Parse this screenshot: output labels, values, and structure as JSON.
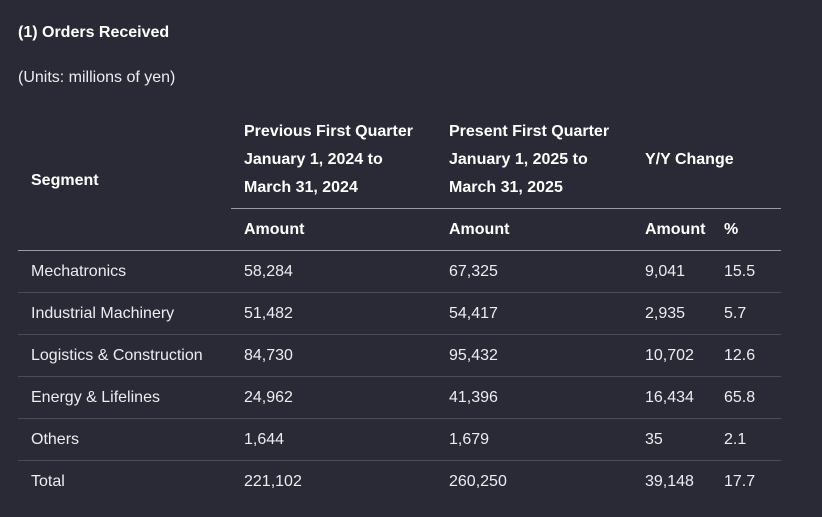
{
  "title": "(1) Orders Received",
  "units": "(Units: millions of yen)",
  "table": {
    "segment_header": "Segment",
    "previous_header": {
      "line1": "Previous First Quarter",
      "line2": "January 1, 2024 to",
      "line3": "March 31, 2024"
    },
    "present_header": {
      "line1": "Present First Quarter",
      "line2": "January 1, 2025 to",
      "line3": "March 31, 2025"
    },
    "yoy_header": "Y/Y Change",
    "sub_headers": {
      "previous_amount": "Amount",
      "present_amount": "Amount",
      "yoy_amount": "Amount",
      "yoy_percent": "%"
    },
    "rows": [
      {
        "segment": "Mechatronics",
        "previous": "58,284",
        "present": "67,325",
        "yoy_amount": "9,041",
        "yoy_percent": "15.5"
      },
      {
        "segment": "Industrial Machinery",
        "previous": "51,482",
        "present": "54,417",
        "yoy_amount": "2,935",
        "yoy_percent": "5.7"
      },
      {
        "segment": "Logistics & Construction",
        "previous": "84,730",
        "present": "95,432",
        "yoy_amount": "10,702",
        "yoy_percent": "12.6"
      },
      {
        "segment": "Energy & Lifelines",
        "previous": "24,962",
        "present": "41,396",
        "yoy_amount": "16,434",
        "yoy_percent": "65.8"
      },
      {
        "segment": "Others",
        "previous": "1,644",
        "present": "1,679",
        "yoy_amount": "35",
        "yoy_percent": "2.1"
      },
      {
        "segment": "Total",
        "previous": "221,102",
        "present": "260,250",
        "yoy_amount": "39,148",
        "yoy_percent": "17.7"
      }
    ]
  }
}
